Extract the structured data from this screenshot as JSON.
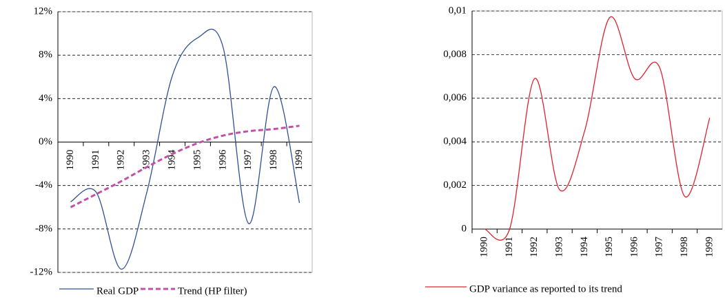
{
  "chart_data": [
    {
      "type": "line",
      "categories": [
        "1990",
        "1991",
        "1992",
        "1993",
        "1994",
        "1995",
        "1996",
        "1997",
        "1998",
        "1999"
      ],
      "series": [
        {
          "name": "Real GDP",
          "color": "#2e4f96",
          "dashed": false,
          "values": [
            -5.5,
            -4.6,
            -11.7,
            -4.6,
            6.1,
            9.6,
            8.7,
            -7.5,
            5.1,
            -5.6
          ]
        },
        {
          "name": "Trend (HP filter)",
          "color": "#c050a8",
          "dashed": true,
          "values": [
            -6.0,
            -4.8,
            -3.6,
            -2.3,
            -1.1,
            -0.1,
            0.6,
            1.0,
            1.2,
            1.5
          ]
        }
      ],
      "ylim": [
        -12,
        12
      ],
      "yticks": [
        {
          "value": -12,
          "label": "-12%"
        },
        {
          "value": -8,
          "label": "-8%"
        },
        {
          "value": -4,
          "label": "-4%"
        },
        {
          "value": 0,
          "label": "0%"
        },
        {
          "value": 4,
          "label": "4%"
        },
        {
          "value": 8,
          "label": "8%"
        },
        {
          "value": 12,
          "label": "12%"
        }
      ],
      "grid": true
    },
    {
      "type": "line",
      "categories": [
        "1990",
        "1991",
        "1992",
        "1993",
        "1994",
        "1995",
        "1996",
        "1997",
        "1998",
        "1999"
      ],
      "series": [
        {
          "name": "GDP variance as reported to its trend",
          "color": "#e0202a",
          "dashed": false,
          "values": [
            0,
            0,
            0.0069,
            0.0018,
            0.0045,
            0.0097,
            0.0069,
            0.0074,
            0.0015,
            0.0051
          ]
        }
      ],
      "ylim": [
        0,
        0.01
      ],
      "yticks": [
        0,
        {
          "value": 0.002,
          "label": "0,002"
        },
        {
          "value": 0.004,
          "label": "0,004"
        },
        {
          "value": 0.006,
          "label": "0,006"
        },
        {
          "value": 0.008,
          "label": "0,008"
        },
        {
          "value": 0.01,
          "label": "0,01"
        }
      ],
      "grid": true
    }
  ]
}
